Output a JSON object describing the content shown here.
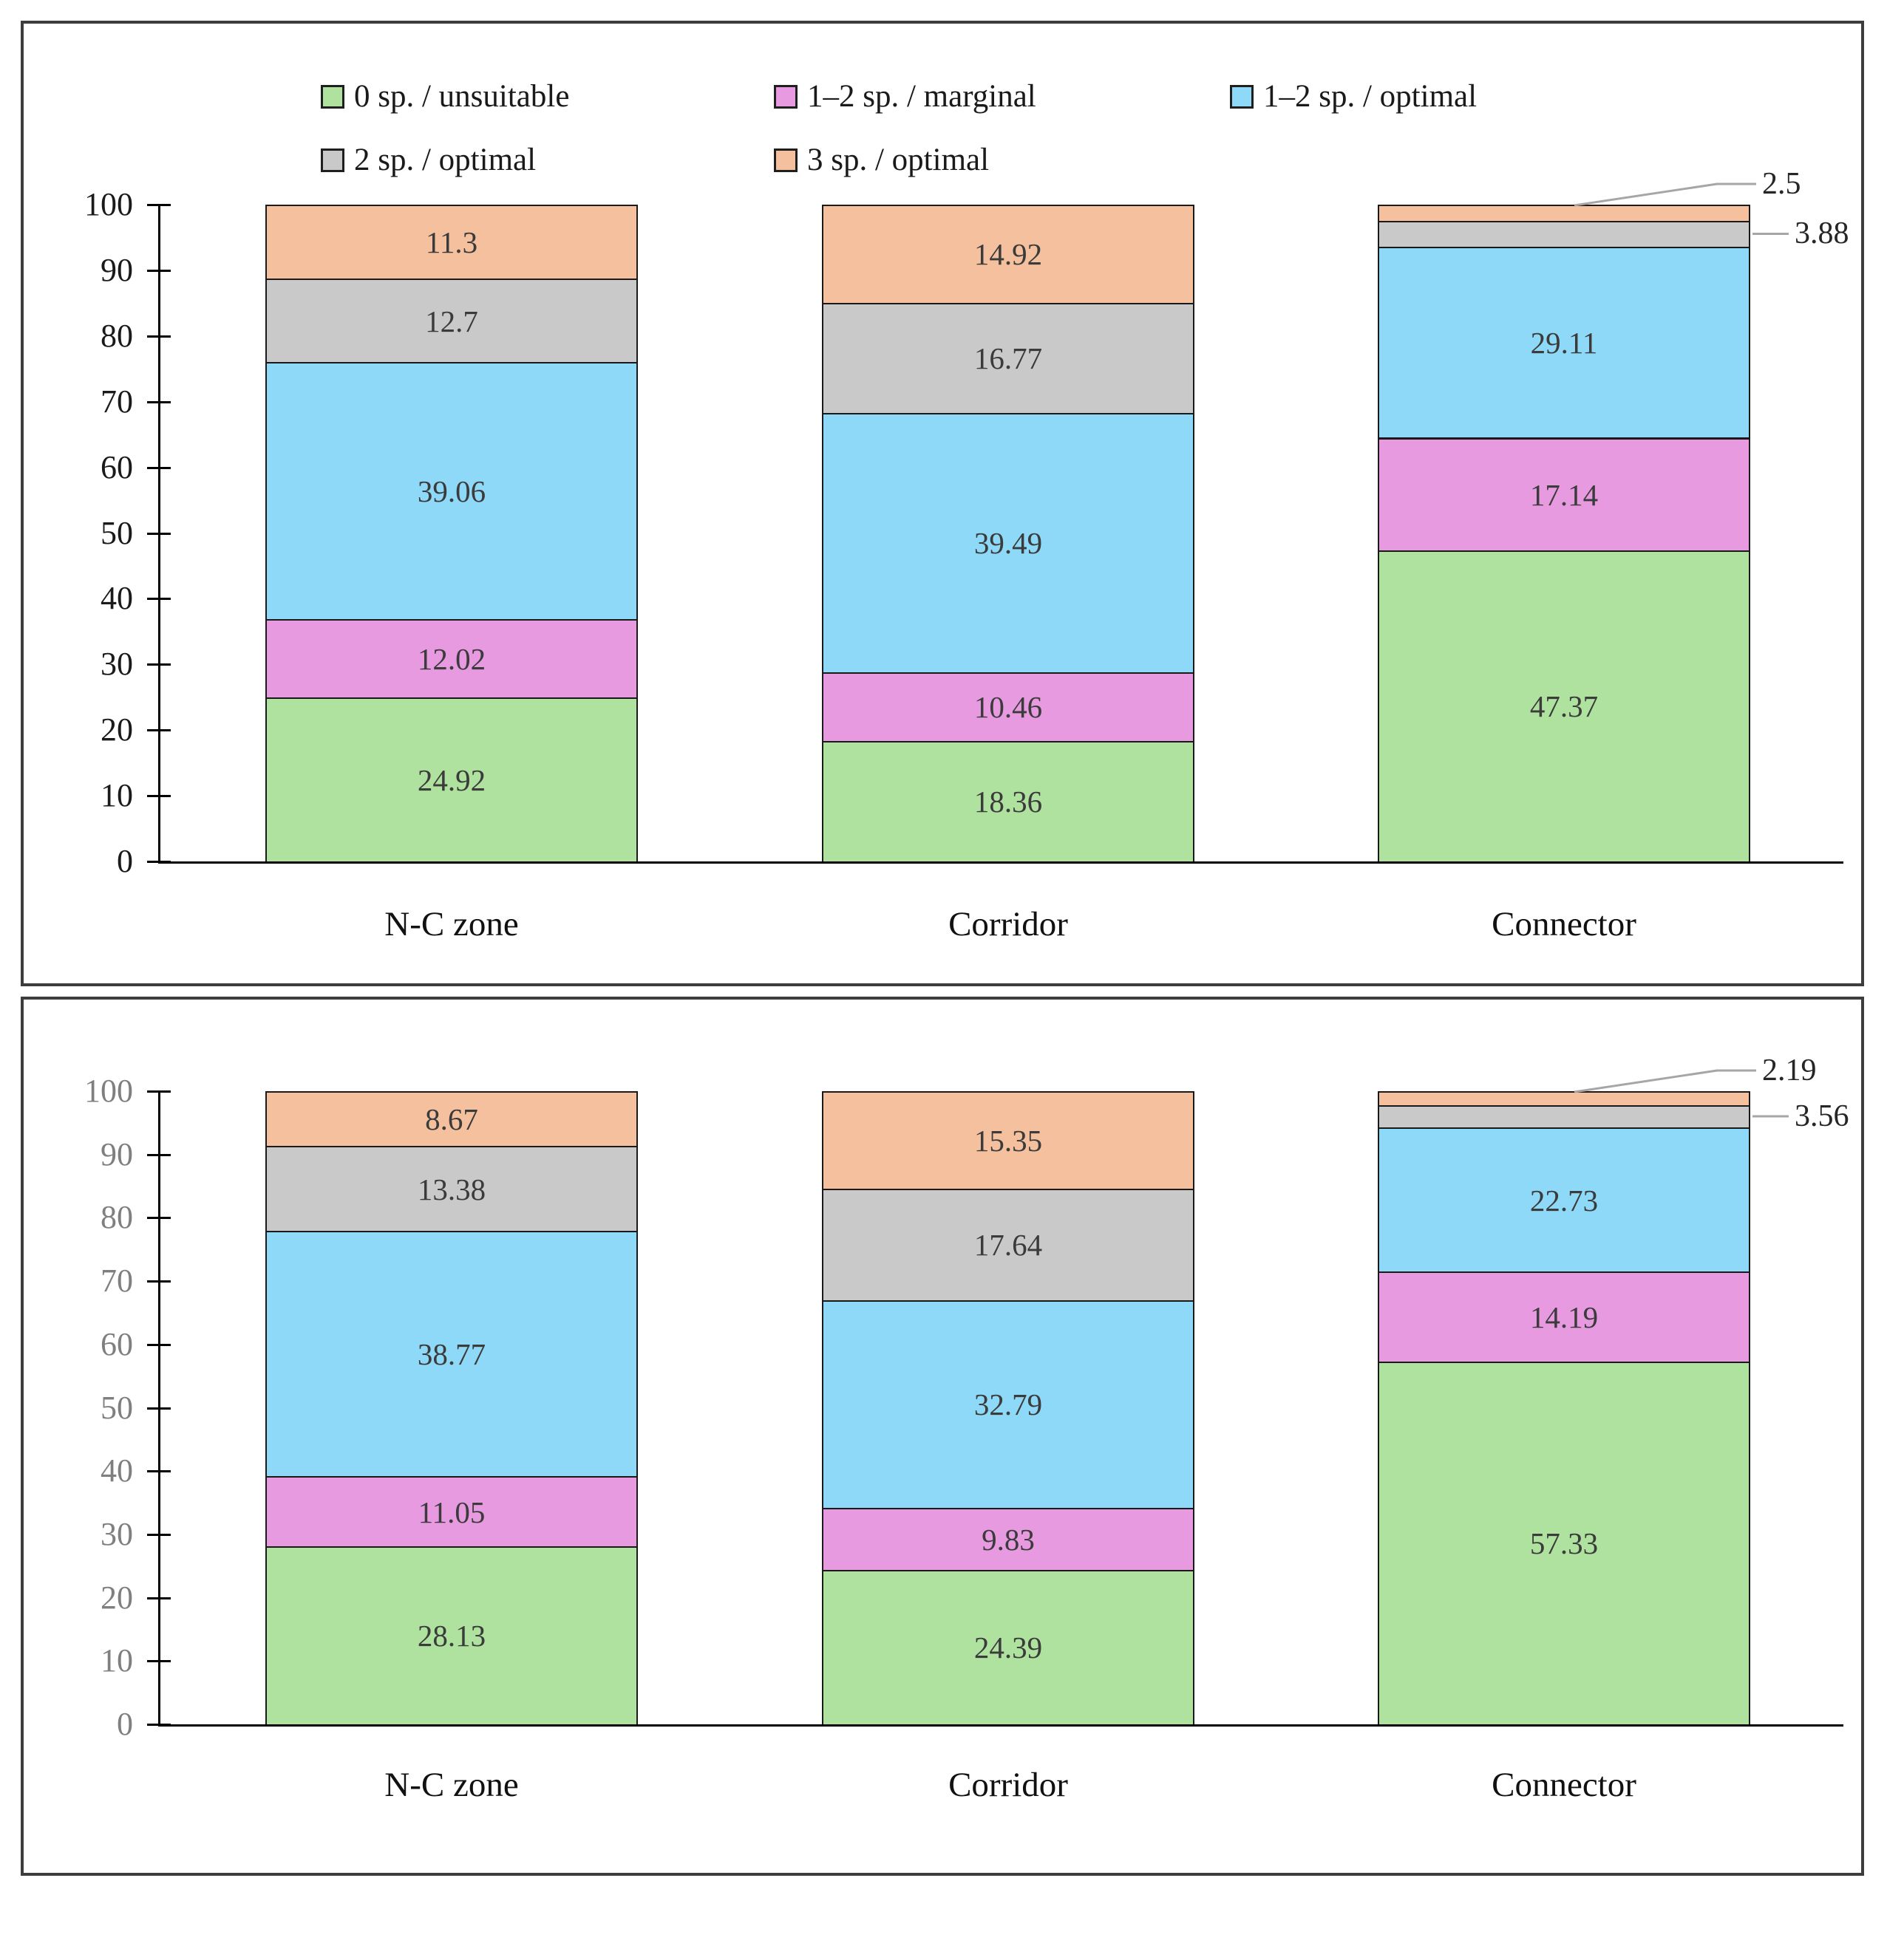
{
  "page": {
    "background": "#ffffff"
  },
  "colors": {
    "series": {
      "unsuitable": "#aee29e",
      "marginal": "#e79ae0",
      "optimal12": "#8ed9f7",
      "optimal2": "#c9c9c9",
      "optimal3": "#f5c09e"
    },
    "segment_border": "#1a1a1a",
    "leader": "#a6a6a6",
    "segment_label": "#3b3b3b",
    "category_label": "#111111",
    "tick_label_top": "#1a1a1a",
    "tick_label_bottom": "#7f7f7f",
    "axis": "#000000",
    "panel_border": "#3d3d3d"
  },
  "legend": {
    "items": [
      {
        "label": "0 sp. / unsuitable",
        "series_key": "unsuitable"
      },
      {
        "label": "1–2 sp. / marginal",
        "series_key": "marginal"
      },
      {
        "label": "1–2 sp. / optimal",
        "series_key": "optimal12"
      },
      {
        "label": "2 sp. / optimal",
        "series_key": "optimal2"
      },
      {
        "label": "3 sp. / optimal",
        "series_key": "optimal3"
      }
    ]
  },
  "chart_data": [
    {
      "type": "bar",
      "subtype": "stacked-100",
      "panel": "top",
      "title": "",
      "xlabel": "",
      "ylabel": "",
      "ylim": [
        0,
        100
      ],
      "grid": false,
      "legend_position": "top",
      "legend_visible": true,
      "categories": [
        "N-C zone",
        "Corridor",
        "Connector"
      ],
      "y_ticks": [
        0,
        10,
        20,
        30,
        40,
        50,
        60,
        70,
        80,
        90,
        100
      ],
      "series": [
        {
          "name": "0 sp. / unsuitable",
          "key": "unsuitable",
          "values": [
            24.92,
            18.36,
            47.37
          ]
        },
        {
          "name": "1–2 sp. / marginal",
          "key": "marginal",
          "values": [
            12.02,
            10.46,
            17.14
          ]
        },
        {
          "name": "1–2 sp. / optimal",
          "key": "optimal12",
          "values": [
            39.06,
            39.49,
            29.11
          ]
        },
        {
          "name": "2 sp. / optimal",
          "key": "optimal2",
          "values": [
            12.7,
            16.77,
            3.88
          ]
        },
        {
          "name": "3 sp. / optimal",
          "key": "optimal3",
          "values": [
            11.3,
            14.92,
            2.5
          ]
        }
      ],
      "external_labels": [
        {
          "category_index": 2,
          "series_key": "optimal2",
          "value": 3.88,
          "style": "side"
        },
        {
          "category_index": 2,
          "series_key": "optimal3",
          "value": 2.5,
          "style": "elbow-top"
        }
      ]
    },
    {
      "type": "bar",
      "subtype": "stacked-100",
      "panel": "bottom",
      "title": "",
      "xlabel": "",
      "ylabel": "",
      "ylim": [
        0,
        100
      ],
      "grid": false,
      "legend_visible": false,
      "categories": [
        "N-C zone",
        "Corridor",
        "Connector"
      ],
      "y_ticks": [
        0,
        10,
        20,
        30,
        40,
        50,
        60,
        70,
        80,
        90,
        100
      ],
      "series": [
        {
          "name": "0 sp. / unsuitable",
          "key": "unsuitable",
          "values": [
            28.13,
            24.39,
            57.33
          ]
        },
        {
          "name": "1–2 sp. / marginal",
          "key": "marginal",
          "values": [
            11.05,
            9.83,
            14.19
          ]
        },
        {
          "name": "1–2 sp. / optimal",
          "key": "optimal12",
          "values": [
            38.77,
            32.79,
            22.73
          ]
        },
        {
          "name": "2 sp. / optimal",
          "key": "optimal2",
          "values": [
            13.38,
            17.64,
            3.56
          ]
        },
        {
          "name": "3 sp. / optimal",
          "key": "optimal3",
          "values": [
            8.67,
            15.35,
            2.19
          ]
        }
      ],
      "external_labels": [
        {
          "category_index": 2,
          "series_key": "optimal2",
          "value": 3.56,
          "style": "side"
        },
        {
          "category_index": 2,
          "series_key": "optimal3",
          "value": 2.19,
          "style": "elbow-top"
        }
      ]
    }
  ]
}
